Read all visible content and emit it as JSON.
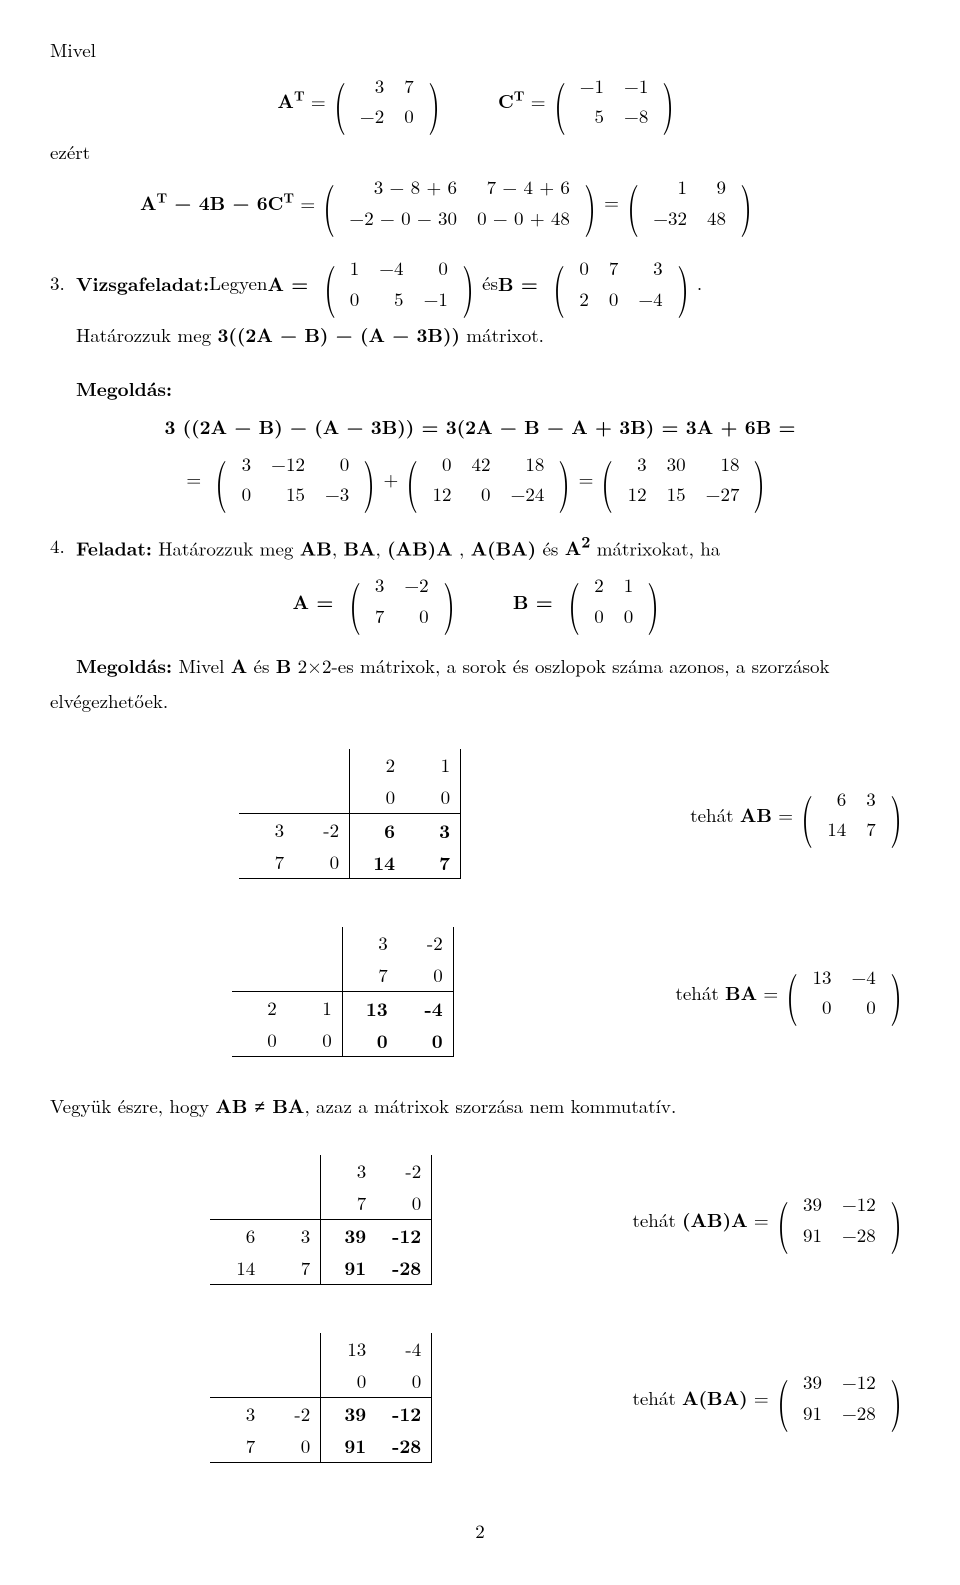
{
  "line1_mivel": "Mivel",
  "line1_AT": "A",
  "sup_T": "T",
  "eq": " = ",
  "AT_mat": [
    [
      "3",
      "7"
    ],
    [
      "−2",
      "0"
    ]
  ],
  "CT": "C",
  "CT_mat": [
    [
      "−1",
      "−1"
    ],
    [
      "5",
      "−8"
    ]
  ],
  "ezert": "ezért",
  "expr2_lhs": "A<sup>T</sup> − 4B − 6C<sup>T</sup> = ",
  "expr2_mat1": [
    [
      "3 − 8 + 6",
      "7 − 4 + 6"
    ],
    [
      "−2 − 0 − 30",
      "0 − 0 + 48"
    ]
  ],
  "expr2_mat2": [
    [
      "1",
      "9"
    ],
    [
      "−32",
      "48"
    ]
  ],
  "item3_label": "3.",
  "item3_text1": "Vizsgafeladat:",
  "item3_text2": " Legyen ",
  "A_eq": "A = ",
  "A_mat": [
    [
      "1",
      "−4",
      "0"
    ],
    [
      "0",
      "5",
      "−1"
    ]
  ],
  "es": " és ",
  "B_eq": "B = ",
  "B_mat": [
    [
      "0",
      "7",
      "3"
    ],
    [
      "2",
      "0",
      "−4"
    ]
  ],
  "period": ".",
  "item3_line2": "Határozzuk meg <b>3((2A − B) − (A − 3B))</b> mátrixot.",
  "megoldas": "Megoldás:",
  "sol3_line1": "3 ((2A − B) − (A − 3B)) = 3(2A − B − A + 3B) = 3A + 6B =",
  "sol3_eqsign": "= ",
  "sol3_m1": [
    [
      "3",
      "−12",
      "0"
    ],
    [
      "0",
      "15",
      "−3"
    ]
  ],
  "plus": " + ",
  "sol3_m2": [
    [
      "0",
      "42",
      "18"
    ],
    [
      "12",
      "0",
      "−24"
    ]
  ],
  "sol3_m3": [
    [
      "3",
      "30",
      "18"
    ],
    [
      "12",
      "15",
      "−27"
    ]
  ],
  "item4_label": "4.",
  "item4_text": "<b>Feladat:</b> Határozzuk meg <b>AB</b>, <b>BA</b>, <b>(AB)A</b> , <b>A(BA)</b> és <b>A<sup>2</sup></b> mátrixokat, ha",
  "item4_A": [
    [
      "3",
      "−2"
    ],
    [
      "7",
      "0"
    ]
  ],
  "item4_B": [
    [
      "2",
      "1"
    ],
    [
      "0",
      "0"
    ]
  ],
  "sol4_text": "<b>Megoldás:</b> Mivel <b>A</b> és <b>B</b> 2×2-es mátrixok, a sorok és oszlopok száma azonos, a szorzások",
  "sol4_text2": "elvégezhetőek.",
  "mult1": {
    "top": [
      [
        "2",
        "1"
      ],
      [
        "0",
        "0"
      ]
    ],
    "left": [
      [
        "3",
        "-2"
      ],
      [
        "7",
        "0"
      ]
    ],
    "res": [
      [
        "6",
        "3"
      ],
      [
        "14",
        "7"
      ]
    ]
  },
  "mult1_label": "tehát <b>AB</b> = ",
  "mult1_mat": [
    [
      "6",
      "3"
    ],
    [
      "14",
      "7"
    ]
  ],
  "mult2": {
    "top": [
      [
        "3",
        "-2"
      ],
      [
        "7",
        "0"
      ]
    ],
    "left": [
      [
        "2",
        "1"
      ],
      [
        "0",
        "0"
      ]
    ],
    "res": [
      [
        "13",
        "-4"
      ],
      [
        "0",
        "0"
      ]
    ]
  },
  "mult2_label": "tehát <b>BA</b> = ",
  "mult2_mat": [
    [
      "13",
      "−4"
    ],
    [
      "0",
      "0"
    ]
  ],
  "note": "Vegyük észre, hogy <b>AB ≠ BA</b>, azaz a mátrixok szorzása nem kommutatív.",
  "mult3": {
    "top": [
      [
        "3",
        "-2"
      ],
      [
        "7",
        "0"
      ]
    ],
    "left": [
      [
        "6",
        "3"
      ],
      [
        "14",
        "7"
      ]
    ],
    "res": [
      [
        "39",
        "-12"
      ],
      [
        "91",
        "-28"
      ]
    ]
  },
  "mult3_label": "tehát <b>(AB)A</b> = ",
  "mult3_mat": [
    [
      "39",
      "−12"
    ],
    [
      "91",
      "−28"
    ]
  ],
  "mult4": {
    "top": [
      [
        "13",
        "-4"
      ],
      [
        "0",
        "0"
      ]
    ],
    "left": [
      [
        "3",
        "-2"
      ],
      [
        "7",
        "0"
      ]
    ],
    "res": [
      [
        "39",
        "-12"
      ],
      [
        "91",
        "-28"
      ]
    ]
  },
  "mult4_label": "tehát <b>A(BA)</b> = ",
  "mult4_mat": [
    [
      "39",
      "−12"
    ],
    [
      "91",
      "−28"
    ]
  ],
  "pagenum": "2"
}
